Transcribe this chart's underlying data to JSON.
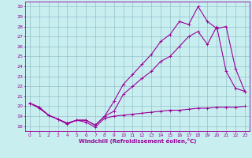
{
  "xlabel": "Windchill (Refroidissement éolien,°C)",
  "x_ticks": [
    0,
    1,
    2,
    3,
    4,
    5,
    6,
    7,
    8,
    9,
    10,
    11,
    12,
    13,
    14,
    15,
    16,
    17,
    18,
    19,
    20,
    21,
    22,
    23
  ],
  "ylim": [
    17.5,
    30.5
  ],
  "yticks": [
    18,
    19,
    20,
    21,
    22,
    23,
    24,
    25,
    26,
    27,
    28,
    29,
    30
  ],
  "bg_color": "#c8eef0",
  "line_color": "#990099",
  "line1_x": [
    0,
    1,
    2,
    3,
    4,
    5,
    6,
    7,
    8,
    9,
    10,
    11,
    12,
    13,
    14,
    15,
    16,
    17,
    18,
    19,
    20,
    21,
    22,
    23
  ],
  "line1_y": [
    20.3,
    19.8,
    19.1,
    18.7,
    18.2,
    18.6,
    18.4,
    17.9,
    18.8,
    19.0,
    19.1,
    19.2,
    19.3,
    19.4,
    19.5,
    19.6,
    19.6,
    19.7,
    19.8,
    19.8,
    19.9,
    19.9,
    19.9,
    20.0
  ],
  "line2_x": [
    0,
    1,
    2,
    3,
    4,
    5,
    6,
    7,
    8,
    9,
    10,
    11,
    12,
    13,
    14,
    15,
    16,
    17,
    18,
    19,
    20,
    21,
    22,
    23
  ],
  "line2_y": [
    20.3,
    19.9,
    19.1,
    18.7,
    18.3,
    18.6,
    18.6,
    18.1,
    19.0,
    19.5,
    21.2,
    22.0,
    22.8,
    23.5,
    24.5,
    25.0,
    26.0,
    27.0,
    27.5,
    26.2,
    28.0,
    23.5,
    21.8,
    21.5
  ],
  "line3_x": [
    0,
    1,
    2,
    3,
    4,
    5,
    6,
    7,
    8,
    9,
    10,
    11,
    12,
    13,
    14,
    15,
    16,
    17,
    18,
    19,
    20,
    21,
    22,
    23
  ],
  "line3_y": [
    20.3,
    19.9,
    19.1,
    18.7,
    18.3,
    18.6,
    18.6,
    18.1,
    19.0,
    20.5,
    22.2,
    23.2,
    24.2,
    25.2,
    26.5,
    27.2,
    28.5,
    28.2,
    30.0,
    28.5,
    27.8,
    28.0,
    23.8,
    21.5
  ]
}
